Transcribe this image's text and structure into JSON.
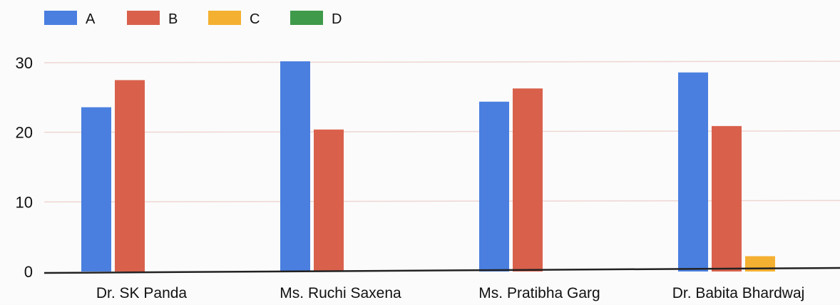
{
  "chart_data": {
    "type": "bar",
    "title": "",
    "xlabel": "",
    "ylabel": "",
    "categories": [
      "Dr. SK Panda",
      "Ms. Ruchi Saxena",
      "Ms. Pratibha Garg",
      "Dr. Babita Bhardwaj"
    ],
    "series": [
      {
        "name": "A",
        "color": "#4a7fe0",
        "values": [
          23.6,
          30.2,
          24.4,
          28.6
        ]
      },
      {
        "name": "B",
        "color": "#d9614c",
        "values": [
          27.5,
          20.4,
          26.3,
          20.9
        ]
      },
      {
        "name": "C",
        "color": "#f4b030",
        "values": [
          0,
          0,
          0,
          2.2
        ]
      },
      {
        "name": "D",
        "color": "#3f9a4a",
        "values": [
          0,
          0,
          0,
          0
        ]
      }
    ],
    "y_ticks": [
      0,
      10,
      20,
      30
    ],
    "ylim": [
      0,
      30
    ],
    "grid": true,
    "legend_position": "top-left"
  }
}
